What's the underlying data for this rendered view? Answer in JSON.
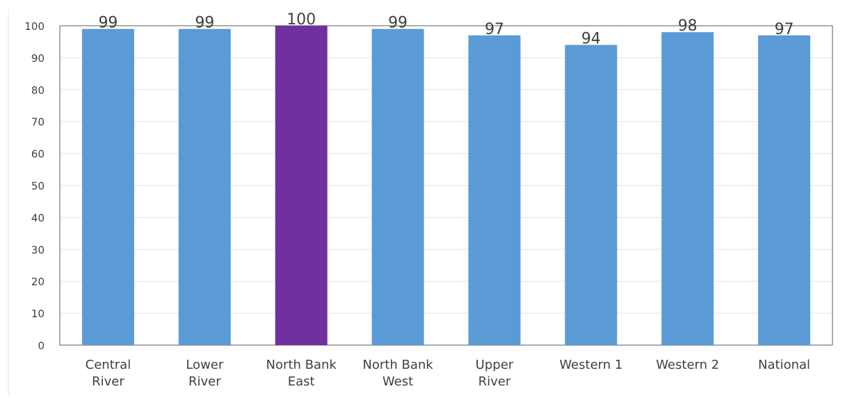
{
  "chart_data": {
    "type": "bar",
    "title": "",
    "xlabel": "",
    "ylabel": "",
    "categories": [
      [
        "Central",
        "River"
      ],
      [
        "Lower",
        "River"
      ],
      [
        "North Bank",
        "East"
      ],
      [
        "North Bank",
        "West"
      ],
      [
        "Upper",
        "River"
      ],
      [
        "Western 1"
      ],
      [
        "Western 2"
      ],
      [
        "National"
      ]
    ],
    "values": [
      99,
      99,
      100,
      99,
      97,
      94,
      98,
      97
    ],
    "data_labels": [
      "99",
      "99",
      "100",
      "99",
      "97",
      "94",
      "98",
      "97"
    ],
    "ylim": [
      0,
      100
    ],
    "yticks": [
      0,
      10,
      20,
      30,
      40,
      50,
      60,
      70,
      80,
      90,
      100
    ],
    "ytick_labels": [
      "0",
      "10",
      "20",
      "30",
      "40",
      "50",
      "60",
      "70",
      "80",
      "90",
      "100"
    ],
    "bar_colors": [
      "#5b9bd5",
      "#5b9bd5",
      "#7030a0",
      "#5b9bd5",
      "#5b9bd5",
      "#5b9bd5",
      "#5b9bd5",
      "#5b9bd5"
    ],
    "grid": true,
    "legend": "none"
  }
}
